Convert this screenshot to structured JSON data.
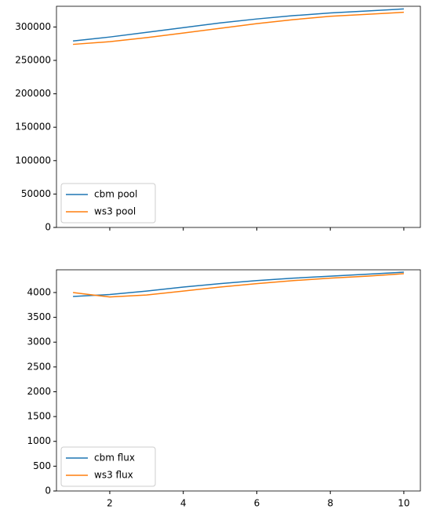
{
  "chart_data": [
    {
      "type": "line",
      "x": [
        1,
        2,
        3,
        4,
        5,
        6,
        7,
        8,
        9,
        10
      ],
      "series": [
        {
          "name": "cbm pool",
          "color": "#1f77b4",
          "values": [
            279000,
            285000,
            292000,
            299000,
            306000,
            312000,
            317000,
            321000,
            324000,
            327000
          ]
        },
        {
          "name": "ws3 pool",
          "color": "#ff7f0e",
          "values": [
            274000,
            278000,
            284000,
            291000,
            298000,
            305000,
            311000,
            316000,
            319000,
            322000
          ]
        }
      ],
      "xlim": [
        0.55,
        10.45
      ],
      "xticks": [
        2,
        4,
        6,
        8,
        10
      ],
      "xtick_labels": false,
      "ylim": [
        0,
        331000
      ],
      "yticks": [
        0,
        50000,
        100000,
        150000,
        200000,
        250000,
        300000
      ],
      "legend": "lower left"
    },
    {
      "type": "line",
      "x": [
        1,
        2,
        3,
        4,
        5,
        6,
        7,
        8,
        9,
        10
      ],
      "series": [
        {
          "name": "cbm flux",
          "color": "#1f77b4",
          "values": [
            3920,
            3960,
            4030,
            4110,
            4180,
            4240,
            4290,
            4330,
            4370,
            4410
          ]
        },
        {
          "name": "ws3 flux",
          "color": "#ff7f0e",
          "values": [
            4000,
            3910,
            3950,
            4030,
            4110,
            4180,
            4240,
            4290,
            4330,
            4380
          ]
        }
      ],
      "xlim": [
        0.55,
        10.45
      ],
      "xticks": [
        2,
        4,
        6,
        8,
        10
      ],
      "xtick_labels": true,
      "ylim": [
        0,
        4458
      ],
      "yticks": [
        0,
        500,
        1000,
        1500,
        2000,
        2500,
        3000,
        3500,
        4000
      ],
      "legend": "lower left"
    }
  ]
}
